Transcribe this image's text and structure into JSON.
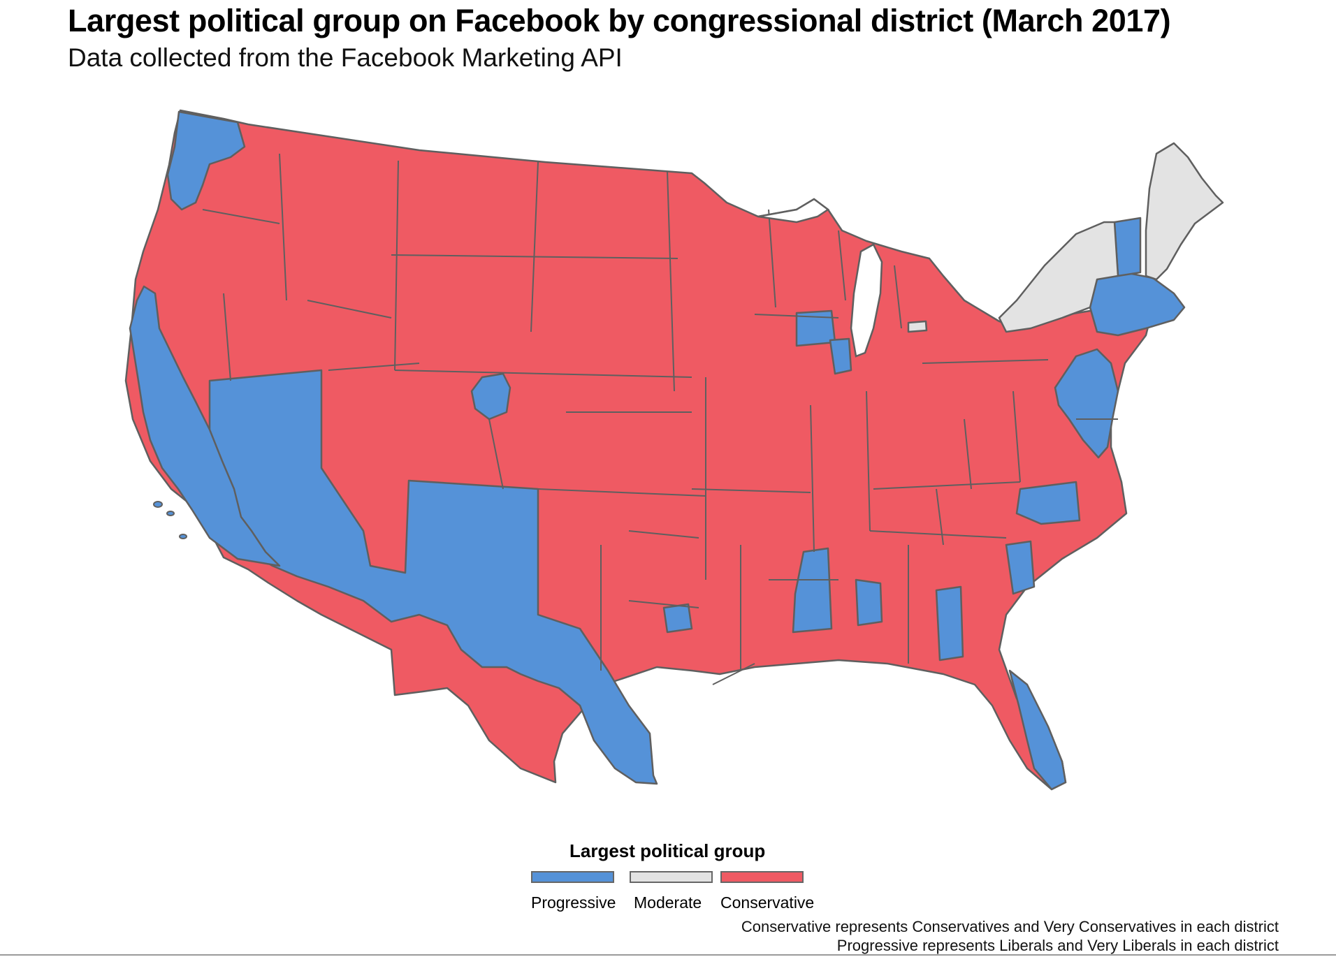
{
  "title": "Largest political group on Facebook by congressional district (March 2017)",
  "subtitle": "Data collected from the Facebook Marketing API",
  "colors": {
    "progressive": "#5592d8",
    "moderate": "#e3e3e3",
    "conservative": "#ef5a63",
    "border": "#5f5f5f"
  },
  "legend": {
    "title": "Largest political group",
    "items": [
      {
        "label": "Progressive",
        "color": "#5592d8"
      },
      {
        "label": "Moderate",
        "color": "#e3e3e3"
      },
      {
        "label": "Conservative",
        "color": "#ef5a63"
      }
    ]
  },
  "captions": [
    "Conservative represents Conservatives and Very Conservatives in each district",
    "Progressive represents Liberals and Very Liberals in each district"
  ]
}
